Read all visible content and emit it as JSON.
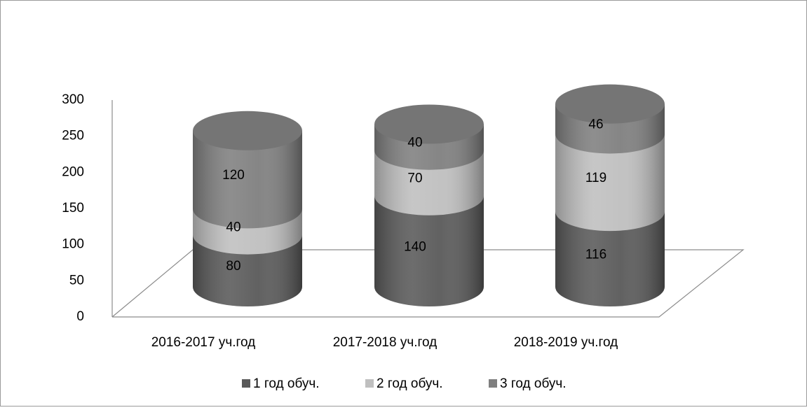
{
  "chart_data": {
    "type": "bar3d_stacked_cylinder",
    "categories": [
      "2016-2017 уч.год",
      "2017-2018 уч.год",
      "2018-2019 уч.год"
    ],
    "series": [
      {
        "name": "1 год обуч.",
        "color": "#595959",
        "values": [
          80,
          140,
          116
        ]
      },
      {
        "name": "2 год обуч.",
        "color": "#bfbfbf",
        "values": [
          40,
          70,
          119
        ]
      },
      {
        "name": "3 год обуч.",
        "color": "#7f7f7f",
        "values": [
          120,
          40,
          46
        ]
      }
    ],
    "ylim": [
      0,
      300
    ],
    "yticks": [
      0,
      50,
      100,
      150,
      200,
      250,
      300
    ],
    "grid": false,
    "legend": "bottom"
  }
}
